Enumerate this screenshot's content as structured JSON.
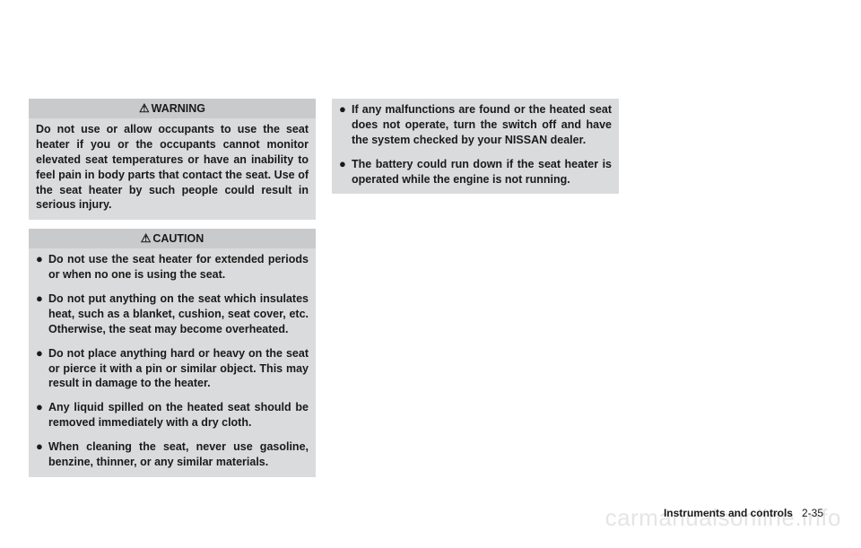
{
  "warning": {
    "header": "WARNING",
    "text": "Do not use or allow occupants to use the seat heater if you or the occupants cannot monitor elevated seat temperatures or have an inability to feel pain in body parts that contact the seat. Use of the seat heater by such people could result in serious injury."
  },
  "caution": {
    "header": "CAUTION",
    "items": [
      "Do not use the seat heater for extended periods or when no one is using the seat.",
      "Do not put anything on the seat which insulates heat, such as a blanket, cushion, seat cover, etc. Otherwise, the seat may become overheated.",
      "Do not place anything hard or heavy on the seat or pierce it with a pin or similar object. This may result in damage to the heater.",
      "Any liquid spilled on the heated seat should be removed immediately with a dry cloth.",
      "When cleaning the seat, never use gasoline, benzine, thinner, or any similar materials."
    ]
  },
  "column2": {
    "items": [
      "If any malfunctions are found or the heated seat does not operate, turn the switch off and have the system checked by your NISSAN dealer.",
      "The battery could run down if the seat heater is operated while the engine is not running."
    ]
  },
  "footer": {
    "section": "Instruments and controls",
    "page": "2-35"
  },
  "watermark": "carmanualsonline.info"
}
